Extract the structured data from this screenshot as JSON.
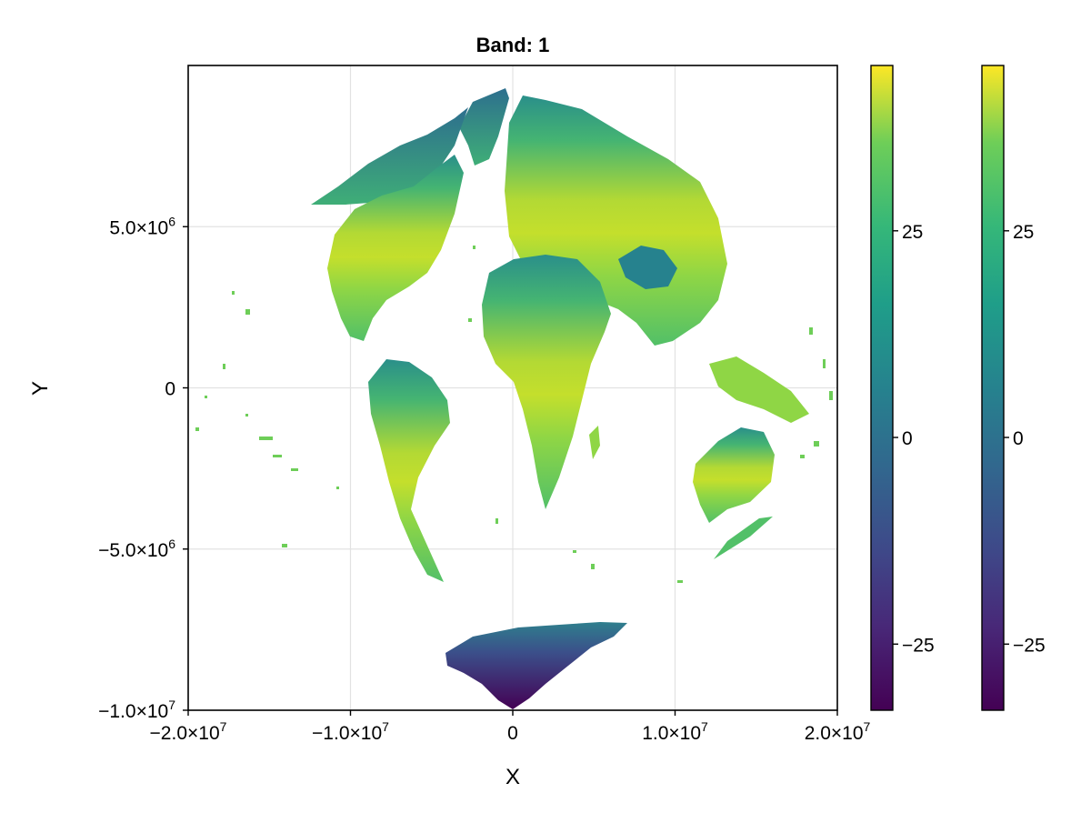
{
  "chart_data": {
    "type": "heatmap",
    "title": "Band: 1",
    "xlabel": "X",
    "ylabel": "Y",
    "xlim": [
      -20000000,
      20000000
    ],
    "ylim": [
      -10000000,
      10000000
    ],
    "grid": true,
    "x_ticks": [
      {
        "value": -20000000,
        "mantissa": "−2.0×10",
        "exp": "7"
      },
      {
        "value": -10000000,
        "mantissa": "−1.0×10",
        "exp": "7"
      },
      {
        "value": 0,
        "mantissa": "0",
        "exp": ""
      },
      {
        "value": 10000000,
        "mantissa": "1.0×10",
        "exp": "7"
      },
      {
        "value": 20000000,
        "mantissa": "2.0×10",
        "exp": "7"
      }
    ],
    "y_ticks": [
      {
        "value": 5000000,
        "mantissa": "5.0×10",
        "exp": "6"
      },
      {
        "value": 0,
        "mantissa": "0",
        "exp": ""
      },
      {
        "value": -5000000,
        "mantissa": "−5.0×10",
        "exp": "6"
      },
      {
        "value": -10000000,
        "mantissa": "−1.0×10",
        "exp": "7"
      }
    ],
    "colormap": "viridis",
    "colorbars": [
      {
        "range": [
          -33,
          45
        ],
        "ticks": [
          {
            "value": 25,
            "label": "25"
          },
          {
            "value": 0,
            "label": "0"
          },
          {
            "value": -25,
            "label": "−25"
          }
        ]
      },
      {
        "range": [
          -33,
          45
        ],
        "ticks": [
          {
            "value": 25,
            "label": "25"
          },
          {
            "value": 0,
            "label": "0"
          },
          {
            "value": -25,
            "label": "−25"
          }
        ]
      }
    ]
  }
}
